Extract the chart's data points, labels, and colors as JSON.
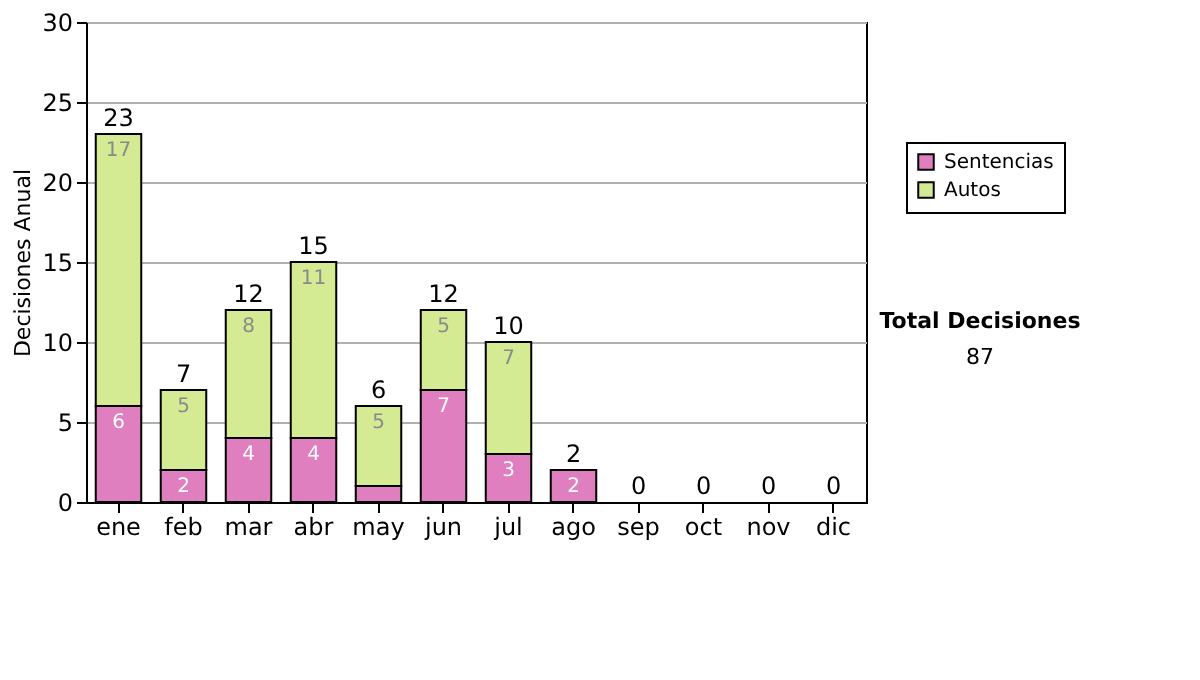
{
  "chart_data": {
    "type": "bar",
    "stacked": true,
    "ylabel": "Decisiones Anual",
    "categories": [
      "ene",
      "feb",
      "mar",
      "abr",
      "may",
      "jun",
      "jul",
      "ago",
      "sep",
      "oct",
      "nov",
      "dic"
    ],
    "series": [
      {
        "name": "Sentencias",
        "color": "#df7fc0",
        "values": [
          6,
          2,
          4,
          4,
          1,
          7,
          3,
          2,
          0,
          0,
          0,
          0
        ],
        "value_labels": [
          "6",
          "2",
          "4",
          "4",
          null,
          "7",
          "3",
          "2",
          null,
          null,
          null,
          null
        ]
      },
      {
        "name": "Autos",
        "color": "#d4eb94",
        "values": [
          17,
          5,
          8,
          11,
          5,
          5,
          7,
          0,
          0,
          0,
          0,
          0
        ],
        "value_labels": [
          "17",
          "5",
          "8",
          "11",
          "5",
          "5",
          "7",
          null,
          null,
          null,
          null,
          null
        ]
      }
    ],
    "totals": [
      "23",
      "7",
      "12",
      "15",
      "6",
      "12",
      "10",
      "2",
      "0",
      "0",
      "0",
      "0"
    ],
    "ylim": [
      0,
      30
    ],
    "yticks": [
      0,
      5,
      10,
      15,
      20,
      25,
      30
    ],
    "grid": "y",
    "legend": "right",
    "annotations": [
      "Total Decisiones",
      "87"
    ]
  }
}
